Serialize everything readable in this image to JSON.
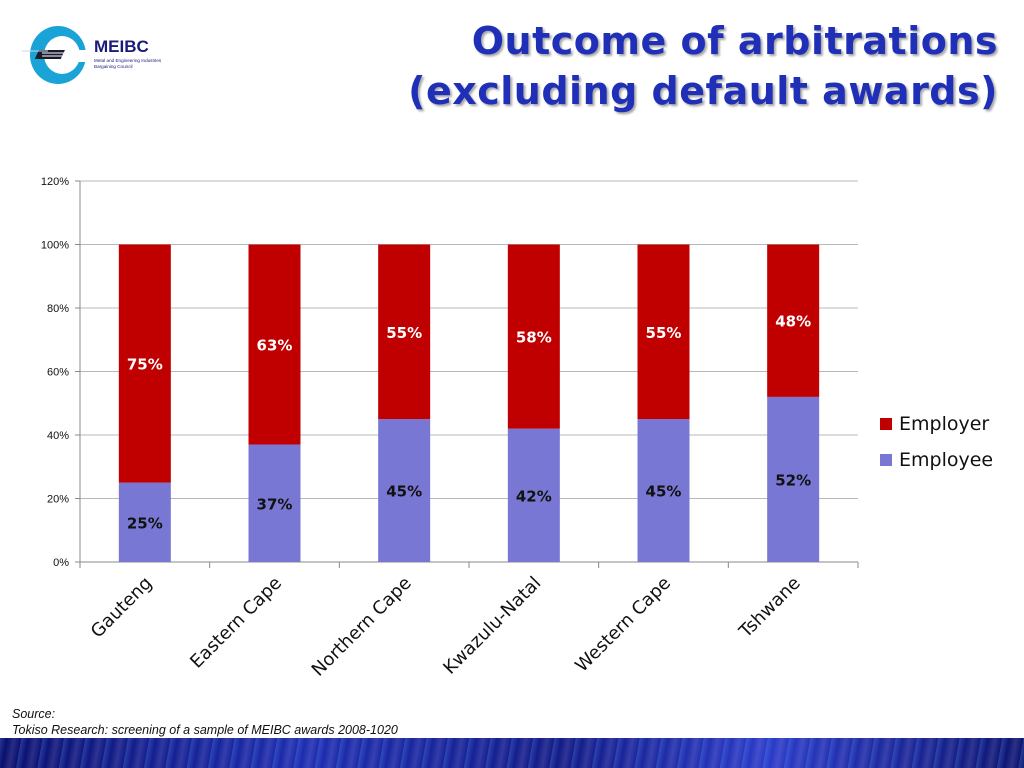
{
  "logo": {
    "text": "MEIBC",
    "subtitle_line1": "Metal and Engineering Industries",
    "subtitle_line2": "Bargaining Council"
  },
  "title": {
    "line1": "Outcome of arbitrations",
    "line2": "(excluding default awards)"
  },
  "colors": {
    "employer": "#c00000",
    "employee": "#7878d4",
    "title": "#1f2fb8"
  },
  "chart_data": {
    "type": "bar",
    "stacked": true,
    "categories": [
      "Gauteng",
      "Eastern Cape",
      "Northern Cape",
      "Kwazulu-Natal",
      "Western Cape",
      "Tshwane"
    ],
    "series": [
      {
        "name": "Employee",
        "values": [
          25,
          37,
          45,
          42,
          45,
          52
        ],
        "labels": [
          "25%",
          "37%",
          "45%",
          "42%",
          "45%",
          "52%"
        ]
      },
      {
        "name": "Employer",
        "values": [
          75,
          63,
          55,
          58,
          55,
          48
        ],
        "labels": [
          "75%",
          "63%",
          "55%",
          "58%",
          "55%",
          "48%"
        ]
      }
    ],
    "ylim": [
      0,
      120
    ],
    "yticks": [
      "0%",
      "20%",
      "40%",
      "60%",
      "80%",
      "100%",
      "120%"
    ],
    "grid": true,
    "legend_position": "right",
    "legend": [
      "Employer",
      "Employee"
    ]
  },
  "source": {
    "line1": "Source:",
    "line2": "Tokiso Research: screening of a sample of MEIBC awards 2008-1020"
  }
}
